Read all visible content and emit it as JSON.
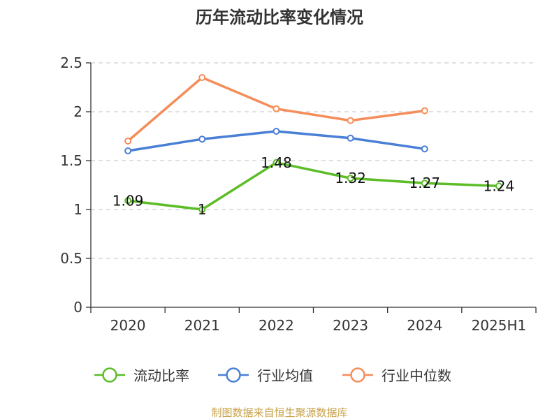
{
  "chart_data": {
    "type": "line",
    "title": "历年流动比率变化情况",
    "categories": [
      "2020",
      "2021",
      "2022",
      "2023",
      "2024",
      "2025H1"
    ],
    "ylim": [
      0,
      2.5
    ],
    "yticks": [
      "0",
      "0.5",
      "1",
      "1.5",
      "2",
      "2.5"
    ],
    "grid": true,
    "legend_position": "bottom",
    "series": [
      {
        "name": "流动比率",
        "color": "#5cbd29",
        "values": [
          1.09,
          1.0,
          1.48,
          1.32,
          1.27,
          1.24
        ],
        "labels": [
          "1.09",
          "1",
          "1.48",
          "1.32",
          "1.27",
          "1.24"
        ]
      },
      {
        "name": "行业均值",
        "color": "#4a7fd6",
        "values": [
          1.6,
          1.72,
          1.8,
          1.73,
          1.62,
          null
        ]
      },
      {
        "name": "行业中位数",
        "color": "#f58d5a",
        "values": [
          1.7,
          2.35,
          2.03,
          1.91,
          2.01,
          null
        ]
      }
    ],
    "source": "制图数据来自恒生聚源数据库",
    "source_color": "#c8a046"
  }
}
